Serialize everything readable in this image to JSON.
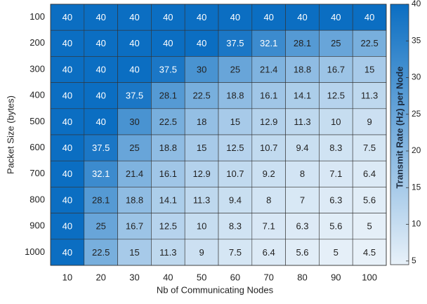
{
  "chart_data": {
    "type": "heatmap",
    "x_label": "Nb of Communicating Nodes",
    "y_label": "Packet Size (bytes)",
    "colorbar_label": "Transmit Rate  (Hz) per Node",
    "x": [
      10,
      20,
      30,
      40,
      50,
      60,
      70,
      80,
      90,
      100
    ],
    "y": [
      100,
      200,
      300,
      400,
      500,
      600,
      700,
      800,
      900,
      1000
    ],
    "values": [
      [
        40,
        40,
        40,
        40,
        40,
        40,
        40,
        40,
        40,
        40
      ],
      [
        40,
        40,
        40,
        40,
        40,
        37.5,
        32.1,
        28.1,
        25,
        22.5
      ],
      [
        40,
        40,
        40,
        37.5,
        30,
        25,
        21.4,
        18.8,
        16.7,
        15
      ],
      [
        40,
        40,
        37.5,
        28.1,
        22.5,
        18.8,
        16.1,
        14.1,
        12.5,
        11.3
      ],
      [
        40,
        40,
        30,
        22.5,
        18,
        15,
        12.9,
        11.3,
        10,
        9
      ],
      [
        40,
        37.5,
        25,
        18.8,
        15,
        12.5,
        10.7,
        9.4,
        8.3,
        7.5
      ],
      [
        40,
        32.1,
        21.4,
        16.1,
        12.9,
        10.7,
        9.2,
        8,
        7.1,
        6.4
      ],
      [
        40,
        28.1,
        18.8,
        14.1,
        11.3,
        9.4,
        8,
        7,
        6.3,
        5.6
      ],
      [
        40,
        25,
        16.7,
        12.5,
        10,
        8.3,
        7.1,
        6.3,
        5.6,
        5
      ],
      [
        40,
        22.5,
        15,
        11.3,
        9,
        7.5,
        6.4,
        5.6,
        5,
        4.5
      ]
    ],
    "colormap": [
      "#e8f1f9",
      "#0b6ec2"
    ],
    "clim": [
      4.5,
      40
    ],
    "cticks": [
      5,
      10,
      15,
      20,
      25,
      30,
      35,
      40
    ]
  }
}
